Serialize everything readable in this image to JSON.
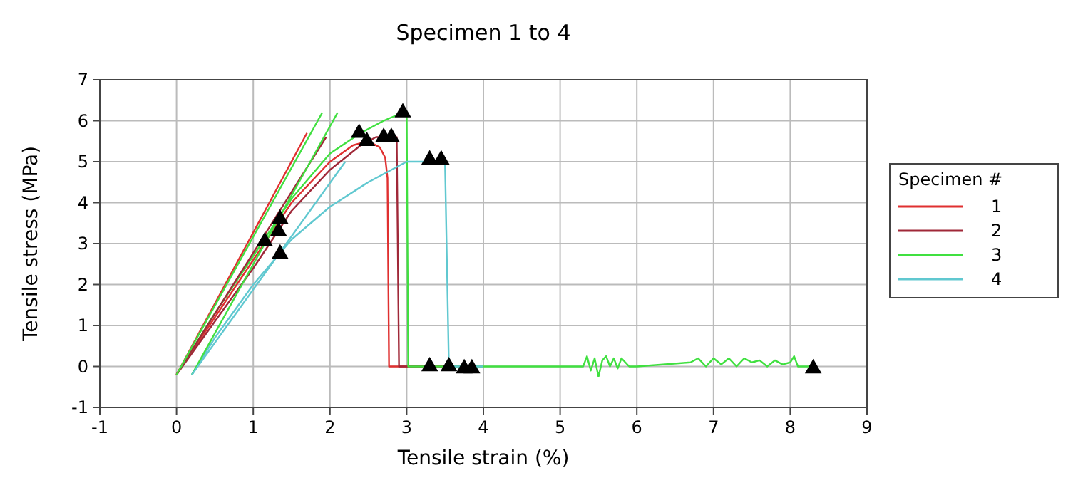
{
  "chart_data": {
    "type": "line",
    "title": "Specimen 1 to 4",
    "xlabel": "Tensile strain (%)",
    "ylabel": "Tensile stress (MPa)",
    "legend_title": "Specimen #",
    "legend": "right",
    "grid": true,
    "marker": "none",
    "line_style": "solid",
    "xlim": [
      -1,
      9
    ],
    "xticks": [
      -1,
      0,
      1,
      2,
      3,
      4,
      5,
      6,
      7,
      8,
      9
    ],
    "ylim": [
      -1,
      7
    ],
    "yticks": [
      -1,
      0,
      1,
      2,
      3,
      4,
      5,
      6,
      7
    ],
    "series": [
      {
        "name": "1",
        "color": "#e03030",
        "x": [
          0,
          0.5,
          1,
          1.5,
          2,
          2.3,
          2.5,
          2.65,
          2.72,
          2.75,
          2.77,
          2.8,
          3.3,
          3.8
        ],
        "values": [
          -0.2,
          1.2,
          2.6,
          4,
          5,
          5.4,
          5.5,
          5.35,
          5.1,
          4.6,
          0,
          0,
          0,
          0
        ]
      },
      {
        "name": "2",
        "color": "#a02838",
        "x": [
          0,
          0.5,
          1,
          1.5,
          2,
          2.4,
          2.6,
          2.8,
          2.87,
          2.9,
          3.3,
          3.8
        ],
        "values": [
          -0.2,
          1.1,
          2.4,
          3.8,
          4.8,
          5.4,
          5.6,
          5.6,
          5.6,
          0,
          0,
          0
        ]
      },
      {
        "name": "3",
        "color": "#40e040",
        "x": [
          0,
          0.5,
          1,
          1.5,
          2,
          2.4,
          2.7,
          2.95,
          3,
          3.02,
          3.5,
          4.8,
          5.3,
          5.35,
          5.4,
          5.45,
          5.5,
          5.55,
          5.6,
          5.65,
          5.7,
          5.75,
          5.8,
          5.85,
          5.9,
          6,
          6.7,
          6.8,
          6.9,
          7,
          7.1,
          7.2,
          7.3,
          7.4,
          7.5,
          7.6,
          7.7,
          7.8,
          7.9,
          8,
          8.05,
          8.1,
          8.3
        ],
        "values": [
          -0.2,
          1.3,
          2.7,
          4.1,
          5.2,
          5.7,
          6,
          6.2,
          6.2,
          0,
          0,
          0,
          0,
          0.25,
          -0.1,
          0.2,
          -0.25,
          0.15,
          0.25,
          0,
          0.2,
          -0.05,
          0.2,
          0.1,
          0,
          0,
          0.1,
          0.2,
          0,
          0.2,
          0.05,
          0.2,
          0,
          0.2,
          0.1,
          0.15,
          0,
          0.15,
          0.05,
          0.1,
          0.25,
          0,
          0
        ]
      },
      {
        "name": "4",
        "color": "#60c8d0",
        "x": [
          0.2,
          0.5,
          1,
          1.5,
          2,
          2.5,
          2.8,
          3,
          3.5,
          3.55,
          3.6,
          4
        ],
        "values": [
          -0.2,
          0.7,
          2,
          3.1,
          3.9,
          4.5,
          4.8,
          5,
          5,
          0,
          0,
          0
        ]
      },
      {
        "color": "#e03030",
        "x": [
          0,
          1.7
        ],
        "values": [
          -0.2,
          5.7
        ]
      },
      {
        "color": "#a02838",
        "x": [
          0,
          1.95
        ],
        "values": [
          -0.2,
          5.6
        ]
      },
      {
        "color": "#40e040",
        "x": [
          0,
          1.9
        ],
        "values": [
          -0.2,
          6.2
        ]
      },
      {
        "color": "#40e040",
        "x": [
          0.2,
          2.1
        ],
        "values": [
          -0.2,
          6.2
        ]
      },
      {
        "color": "#60c8d0",
        "x": [
          0.2,
          2.2
        ],
        "values": [
          -0.2,
          5
        ]
      },
      {
        "type": "scatter",
        "marker": "triangle",
        "color": "#000000",
        "x": [
          1.15,
          1.33,
          1.35,
          1.35,
          2.38,
          2.48,
          2.7,
          2.8,
          2.95,
          3.3,
          3.45,
          3.3,
          3.55,
          3.75,
          3.85,
          8.3
        ],
        "values": [
          3.05,
          3.3,
          3.6,
          2.75,
          5.7,
          5.5,
          5.6,
          5.6,
          6.2,
          5.05,
          5.05,
          0,
          0,
          -0.05,
          -0.05,
          -0.05
        ]
      }
    ]
  }
}
